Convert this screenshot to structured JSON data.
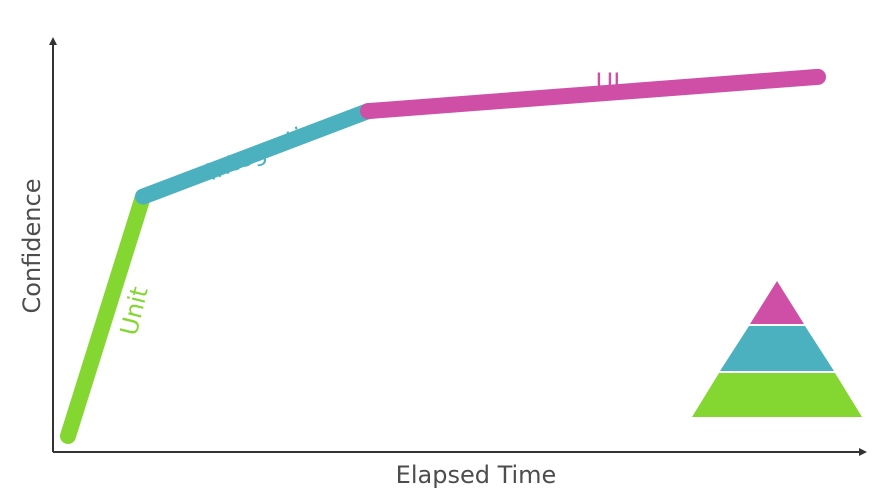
{
  "chart_data": {
    "type": "line",
    "title": "",
    "xlabel": "Elapsed Time",
    "ylabel": "Confidence",
    "grid": false,
    "legend": "none",
    "x_ticks_shown": false,
    "y_ticks_shown": false,
    "series": [
      {
        "name": "Unit",
        "color": "#84d630",
        "points": [
          [
            0.0,
            0.0
          ],
          [
            0.1,
            0.7
          ]
        ]
      },
      {
        "name": "Integration",
        "color": "#4bb1be",
        "points": [
          [
            0.1,
            0.7
          ],
          [
            0.4,
            0.95
          ]
        ]
      },
      {
        "name": "UI",
        "color": "#cf4fa6",
        "points": [
          [
            0.4,
            0.95
          ],
          [
            1.0,
            1.05
          ]
        ]
      }
    ],
    "inset": {
      "type": "pyramid",
      "levels_bottom_to_top": [
        {
          "series": "Unit",
          "color": "#84d630"
        },
        {
          "series": "Integration",
          "color": "#4bb1be"
        },
        {
          "series": "UI",
          "color": "#cf4fa6"
        }
      ]
    }
  }
}
